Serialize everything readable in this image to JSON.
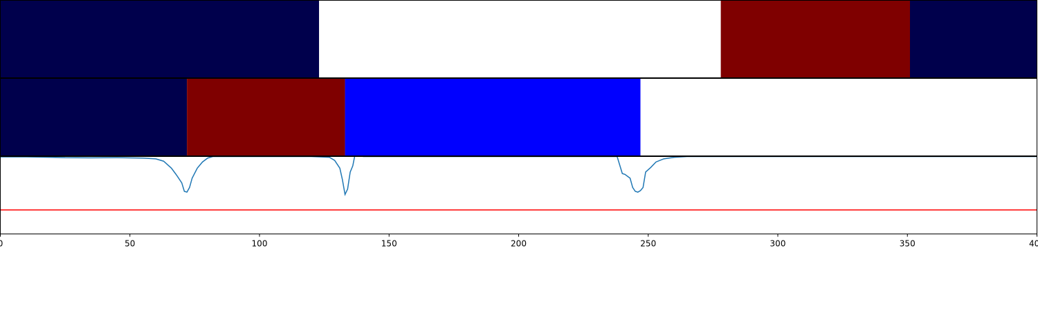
{
  "chart_data": [
    {
      "type": "segments",
      "xlim": [
        0,
        400
      ],
      "segments": [
        {
          "start": 0,
          "end": 123,
          "color": "#00004c"
        },
        {
          "start": 123,
          "end": 278,
          "color": "#ffffff"
        },
        {
          "start": 278,
          "end": 351,
          "color": "#7f0000"
        },
        {
          "start": 351,
          "end": 400,
          "color": "#00004c"
        }
      ]
    },
    {
      "type": "segments",
      "xlim": [
        0,
        400
      ],
      "segments": [
        {
          "start": 0,
          "end": 72,
          "color": "#00004c"
        },
        {
          "start": 72,
          "end": 133,
          "color": "#7f0000"
        },
        {
          "start": 133,
          "end": 247,
          "color": "#0000ff"
        },
        {
          "start": 247,
          "end": 400,
          "color": "#ffffff"
        }
      ]
    },
    {
      "type": "line",
      "xlim": [
        0,
        400
      ],
      "ylim": [
        0,
        1
      ],
      "xticks": [
        0,
        50,
        100,
        150,
        200,
        250,
        300,
        350,
        400
      ],
      "x": [
        0,
        10,
        20,
        25,
        35,
        45,
        55,
        60,
        63,
        66,
        68,
        70,
        71,
        72,
        73,
        74,
        76,
        78,
        80,
        82,
        90,
        120,
        127,
        129,
        131,
        132,
        133,
        134,
        135,
        136,
        137,
        140,
        200,
        238,
        240,
        241,
        243,
        244,
        245,
        246,
        247,
        248,
        249,
        251,
        253,
        256,
        260,
        265,
        400
      ],
      "series": [
        {
          "color": "#1f77b4",
          "values": [
            0.995,
            0.995,
            0.99,
            0.985,
            0.983,
            0.985,
            0.98,
            0.97,
            0.94,
            0.85,
            0.76,
            0.66,
            0.55,
            0.54,
            0.6,
            0.72,
            0.85,
            0.93,
            0.98,
            1.0,
            1.0,
            1.0,
            0.99,
            0.95,
            0.85,
            0.7,
            0.51,
            0.58,
            0.8,
            0.88,
            1.05,
            1.0,
            1.0,
            1.0,
            0.78,
            0.77,
            0.72,
            0.6,
            0.55,
            0.54,
            0.56,
            0.6,
            0.8,
            0.86,
            0.93,
            0.97,
            0.99,
            1.0,
            1.0
          ]
        }
      ],
      "hlines": [
        {
          "y": 0.31,
          "color": "#ff0000"
        }
      ]
    }
  ]
}
